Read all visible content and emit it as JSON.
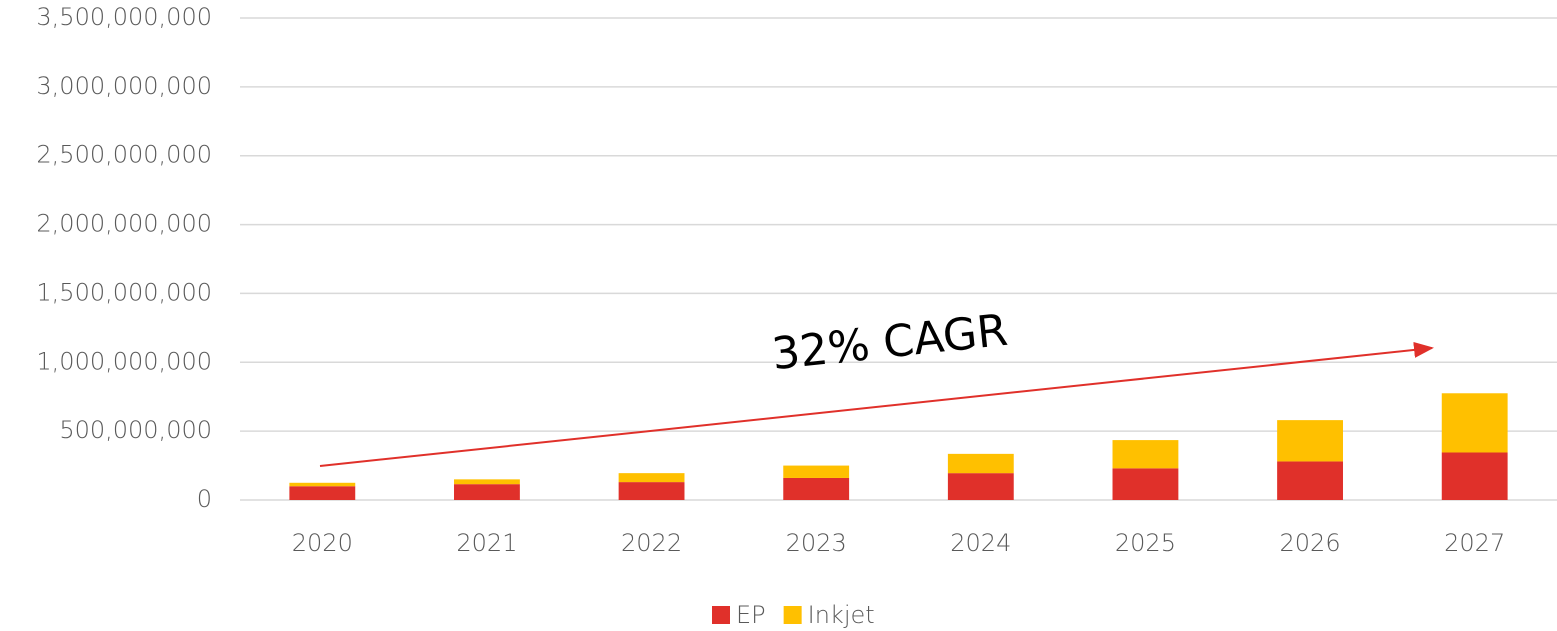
{
  "chart_data": {
    "type": "bar",
    "stacked": true,
    "categories": [
      "2020",
      "2021",
      "2022",
      "2023",
      "2024",
      "2025",
      "2026",
      "2027"
    ],
    "series": [
      {
        "name": "EP",
        "color": "#e0302a",
        "values": [
          100000000,
          115000000,
          130000000,
          160000000,
          195000000,
          230000000,
          280000000,
          345000000
        ]
      },
      {
        "name": "Inkjet",
        "color": "#ffc000",
        "values": [
          25000000,
          35000000,
          65000000,
          90000000,
          140000000,
          205000000,
          300000000,
          430000000
        ]
      }
    ],
    "ylim": [
      0,
      3500000000
    ],
    "yticks": [
      0,
      {
        "value": 500000000,
        "label": "500,000,000"
      },
      {
        "value": 1000000000,
        "label": "1,000,000,000"
      },
      {
        "value": 1500000000,
        "label": "1,500,000,000"
      },
      {
        "value": 2000000000,
        "label": "2,000,000,000"
      },
      {
        "value": 2500000000,
        "label": "2,500,000,000"
      },
      {
        "value": 3000000000,
        "label": "3,000,000,000"
      },
      {
        "value": 3500000000,
        "label": "3,500,000,000"
      }
    ],
    "grid": true,
    "legend": "bottom",
    "annotation": "32% CAGR"
  }
}
